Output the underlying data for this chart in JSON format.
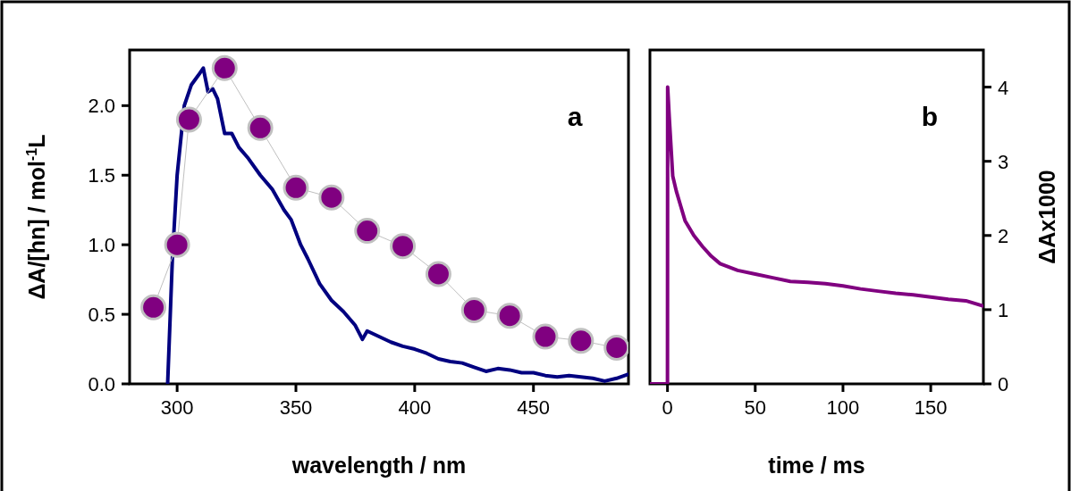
{
  "chart_data": [
    {
      "type": "line",
      "xlabel": "wavelength / nm",
      "ylabel": "ΔA/[hn] / mol$^{-1}$L",
      "annotations": [
        "a"
      ],
      "xlim": [
        280,
        490
      ],
      "xticks": [
        300,
        350,
        400,
        450
      ],
      "ylim": [
        0,
        2.4
      ],
      "yticks": [
        {
          "value": 0,
          "label": "0.0"
        },
        {
          "value": 0.5,
          "label": "0.5"
        },
        {
          "value": 1,
          "label": "1.0"
        },
        {
          "value": 1.5,
          "label": "1.5"
        },
        {
          "value": 2,
          "label": "2.0"
        }
      ],
      "grid": false,
      "series": [
        {
          "color": "#000080",
          "marker": "none",
          "x": [
            296,
            298,
            300,
            303,
            306,
            309,
            311,
            313,
            315,
            317,
            320,
            323,
            326,
            330,
            335,
            340,
            345,
            348,
            352,
            355,
            360,
            365,
            370,
            375,
            378,
            380,
            385,
            390,
            395,
            400,
            405,
            410,
            415,
            420,
            425,
            430,
            435,
            440,
            445,
            450,
            455,
            460,
            465,
            470,
            475,
            480,
            485,
            490
          ],
          "values": [
            0,
            0.9,
            1.5,
            2.0,
            2.15,
            2.22,
            2.27,
            2.1,
            2.12,
            2.05,
            1.8,
            1.8,
            1.7,
            1.62,
            1.5,
            1.4,
            1.25,
            1.18,
            1.0,
            0.9,
            0.72,
            0.6,
            0.52,
            0.42,
            0.32,
            0.38,
            0.34,
            0.3,
            0.27,
            0.25,
            0.22,
            0.18,
            0.16,
            0.15,
            0.12,
            0.09,
            0.11,
            0.1,
            0.08,
            0.08,
            0.06,
            0.05,
            0.06,
            0.05,
            0.04,
            0.02,
            0.04,
            0.07
          ]
        },
        {
          "color": "#800080",
          "marker": "circle",
          "x": [
            290,
            300,
            305,
            320,
            335,
            350,
            365,
            380,
            395,
            410,
            425,
            440,
            455,
            470,
            485
          ],
          "values": [
            0.55,
            1.0,
            1.9,
            2.27,
            1.84,
            1.41,
            1.34,
            1.1,
            0.99,
            0.79,
            0.53,
            0.49,
            0.34,
            0.31,
            0.26
          ]
        }
      ]
    },
    {
      "type": "line",
      "xlabel": "time / ms",
      "y2label": "ΔAx1000",
      "annotations": [
        "b"
      ],
      "xlim": [
        -10,
        180
      ],
      "xticks": [
        0,
        50,
        100,
        150
      ],
      "y2lim": [
        0,
        4.5
      ],
      "y2ticks": [
        0,
        1,
        2,
        3,
        4
      ],
      "grid": false,
      "series": [
        {
          "color": "#800080",
          "marker": "none",
          "axis": "y2",
          "x": [
            -10,
            -2,
            0,
            0.1,
            1,
            3,
            5,
            10,
            15,
            20,
            25,
            30,
            40,
            50,
            60,
            70,
            80,
            90,
            100,
            110,
            120,
            130,
            140,
            150,
            160,
            170,
            180
          ],
          "values": [
            0,
            0,
            0,
            4.0,
            3.6,
            2.8,
            2.6,
            2.2,
            2.0,
            1.85,
            1.72,
            1.62,
            1.53,
            1.48,
            1.43,
            1.38,
            1.37,
            1.35,
            1.32,
            1.28,
            1.25,
            1.22,
            1.2,
            1.17,
            1.14,
            1.12,
            1.05
          ]
        }
      ]
    }
  ]
}
